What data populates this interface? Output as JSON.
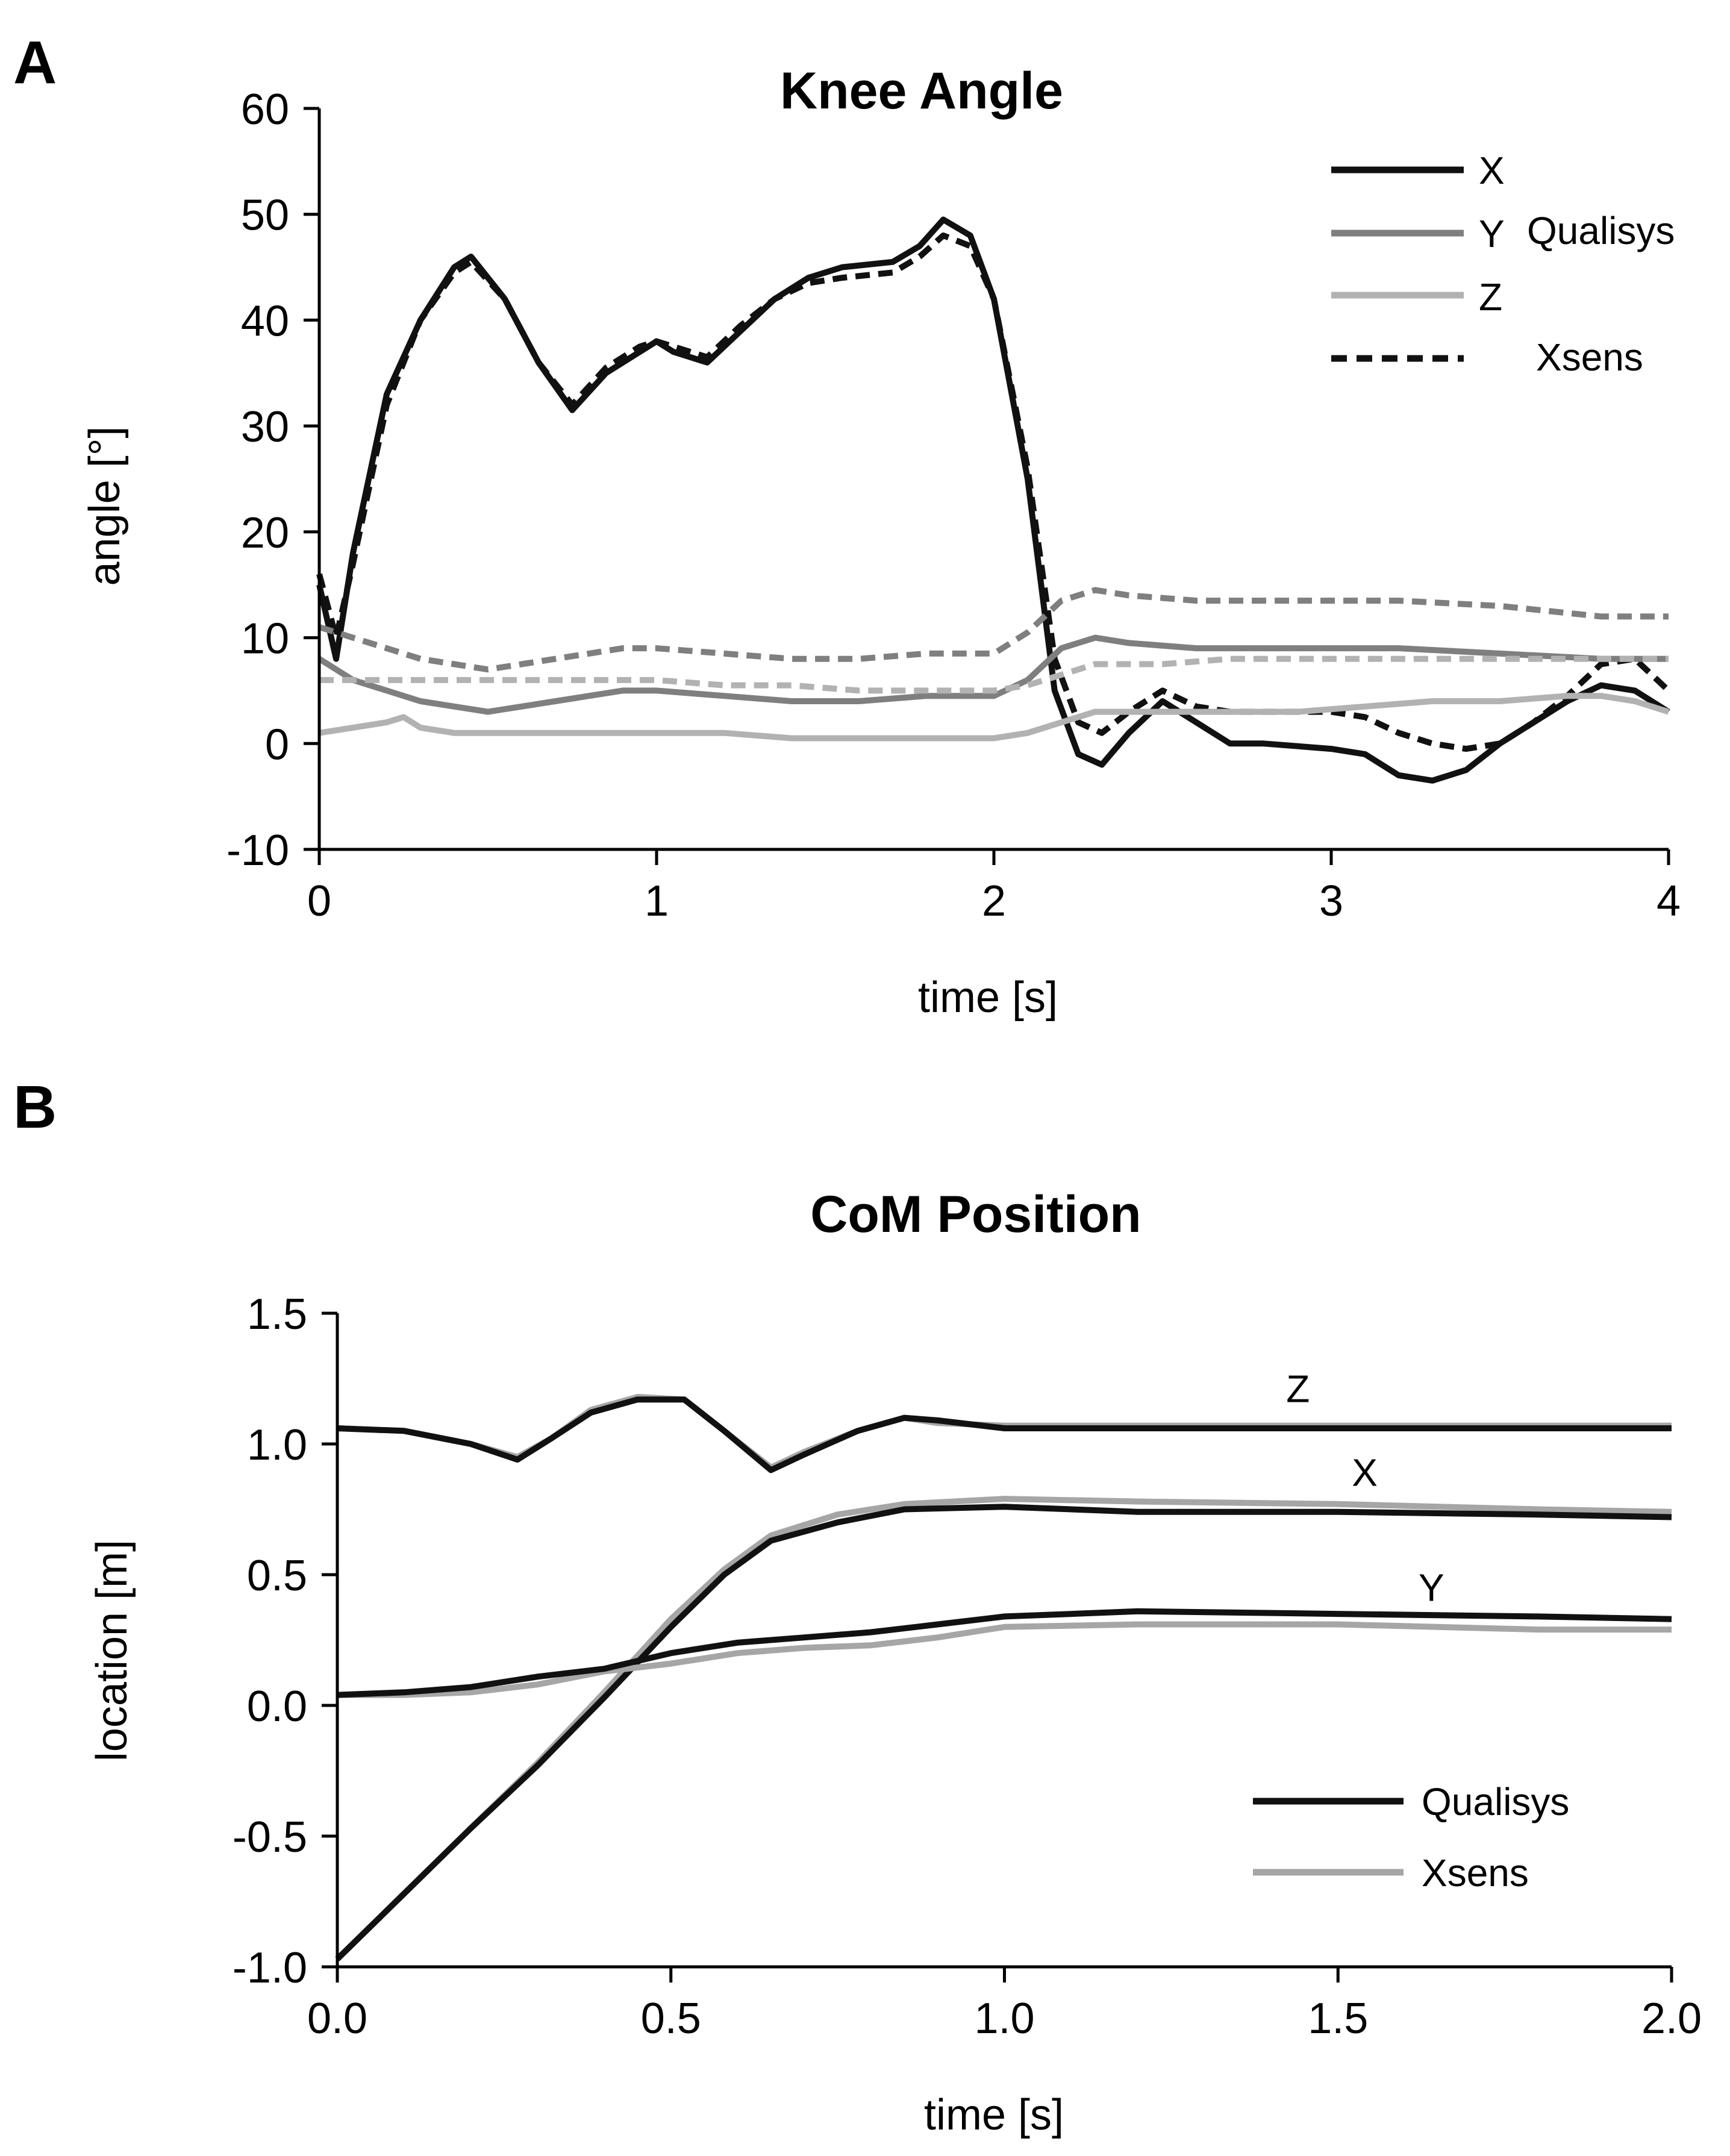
{
  "chart_data": [
    {
      "panel_label": "A",
      "type": "line",
      "title": "Knee Angle",
      "xlabel": "time [s]",
      "ylabel": "angle [°]",
      "xlim": [
        0,
        4
      ],
      "ylim": [
        -10,
        60
      ],
      "xticks": [
        0,
        1,
        2,
        3,
        4
      ],
      "xtick_labels": [
        "0",
        "1",
        "2",
        "3",
        "4"
      ],
      "yticks": [
        -10,
        0,
        10,
        20,
        30,
        40,
        50,
        60
      ],
      "ytick_labels": [
        "-10",
        "0",
        "10",
        "20",
        "30",
        "40",
        "50",
        "60"
      ],
      "grid": false,
      "legend_position": "top-right",
      "legend": {
        "x_label": "X",
        "y_label": "Y",
        "z_label": "Z",
        "group_label": "Qualisys",
        "dashed_label": "Xsens"
      },
      "colors": {
        "X": "#111111",
        "Y": "#7f7f7f",
        "Z": "#b2b2b2"
      },
      "series": [
        {
          "name": "X",
          "system": "Qualisys",
          "color": "#111111",
          "dash": false,
          "x": [
            0,
            0.05,
            0.1,
            0.2,
            0.3,
            0.4,
            0.45,
            0.55,
            0.65,
            0.75,
            0.85,
            0.95,
            1.0,
            1.05,
            1.15,
            1.25,
            1.35,
            1.45,
            1.55,
            1.7,
            1.78,
            1.85,
            1.93,
            2.0,
            2.1,
            2.18,
            2.25,
            2.32,
            2.4,
            2.5,
            2.6,
            2.7,
            2.8,
            3.0,
            3.1,
            3.2,
            3.3,
            3.4,
            3.5,
            3.6,
            3.7,
            3.8,
            3.9,
            4.0
          ],
          "y": [
            15,
            8,
            18,
            33,
            40,
            45,
            46,
            42,
            36,
            31.5,
            35,
            37,
            38,
            37,
            36,
            39,
            42,
            44,
            45,
            45.5,
            47,
            49.5,
            48,
            42,
            25,
            5,
            -1,
            -2,
            1,
            4,
            2,
            0,
            0,
            -0.5,
            -1,
            -3,
            -3.5,
            -2.5,
            0,
            2,
            4,
            5.5,
            5,
            3
          ]
        },
        {
          "name": "X",
          "system": "Xsens",
          "color": "#111111",
          "dash": true,
          "x": [
            0,
            0.05,
            0.1,
            0.2,
            0.3,
            0.4,
            0.45,
            0.55,
            0.65,
            0.75,
            0.85,
            0.95,
            1.0,
            1.05,
            1.15,
            1.25,
            1.35,
            1.45,
            1.55,
            1.7,
            1.78,
            1.85,
            1.93,
            2.0,
            2.1,
            2.18,
            2.25,
            2.32,
            2.4,
            2.5,
            2.6,
            2.7,
            2.8,
            3.0,
            3.1,
            3.2,
            3.3,
            3.4,
            3.5,
            3.6,
            3.7,
            3.8,
            3.9,
            4.0
          ],
          "y": [
            16,
            10,
            17,
            32,
            40,
            44.5,
            45.5,
            42,
            36,
            32,
            35.5,
            37.5,
            38,
            37.5,
            36.5,
            39.5,
            42,
            43.5,
            44,
            44.5,
            46,
            48,
            47,
            42,
            26,
            8,
            2,
            1,
            3,
            5,
            3.5,
            3,
            3,
            3,
            2.5,
            1,
            0,
            -0.5,
            0,
            2,
            4.5,
            7.5,
            8,
            5
          ]
        },
        {
          "name": "Y",
          "system": "Qualisys",
          "color": "#7f7f7f",
          "dash": false,
          "x": [
            0,
            0.1,
            0.2,
            0.3,
            0.4,
            0.5,
            0.6,
            0.7,
            0.8,
            0.9,
            1.0,
            1.2,
            1.4,
            1.6,
            1.8,
            2.0,
            2.1,
            2.2,
            2.3,
            2.4,
            2.6,
            2.8,
            3.0,
            3.2,
            3.5,
            3.8,
            4.0
          ],
          "y": [
            8,
            6,
            5,
            4,
            3.5,
            3,
            3.5,
            4,
            4.5,
            5,
            5,
            4.5,
            4,
            4,
            4.5,
            4.5,
            6,
            9,
            10,
            9.5,
            9,
            9,
            9,
            9,
            8.5,
            8,
            8
          ]
        },
        {
          "name": "Y",
          "system": "Xsens",
          "color": "#7f7f7f",
          "dash": true,
          "x": [
            0,
            0.1,
            0.2,
            0.3,
            0.4,
            0.5,
            0.6,
            0.7,
            0.8,
            0.9,
            1.0,
            1.2,
            1.4,
            1.6,
            1.8,
            2.0,
            2.1,
            2.2,
            2.3,
            2.4,
            2.6,
            2.8,
            3.0,
            3.2,
            3.5,
            3.8,
            4.0
          ],
          "y": [
            11,
            10,
            9,
            8,
            7.5,
            7,
            7.5,
            8,
            8.5,
            9,
            9,
            8.5,
            8,
            8,
            8.5,
            8.5,
            10.5,
            13.5,
            14.5,
            14,
            13.5,
            13.5,
            13.5,
            13.5,
            13,
            12,
            12
          ]
        },
        {
          "name": "Z",
          "system": "Qualisys",
          "color": "#b2b2b2",
          "dash": false,
          "x": [
            0,
            0.1,
            0.2,
            0.25,
            0.3,
            0.4,
            0.6,
            0.8,
            1.0,
            1.2,
            1.4,
            1.6,
            1.8,
            2.0,
            2.1,
            2.2,
            2.3,
            2.5,
            2.7,
            2.9,
            3.1,
            3.3,
            3.5,
            3.7,
            3.8,
            3.9,
            4.0
          ],
          "y": [
            1,
            1.5,
            2,
            2.5,
            1.5,
            1,
            1,
            1,
            1,
            1,
            0.5,
            0.5,
            0.5,
            0.5,
            1,
            2,
            3,
            3,
            3,
            3,
            3.5,
            4,
            4,
            4.5,
            4.5,
            4,
            3
          ]
        },
        {
          "name": "Z",
          "system": "Xsens",
          "color": "#b2b2b2",
          "dash": true,
          "x": [
            0,
            0.1,
            0.2,
            0.3,
            0.4,
            0.6,
            0.8,
            1.0,
            1.2,
            1.4,
            1.6,
            1.8,
            2.0,
            2.1,
            2.2,
            2.3,
            2.5,
            2.7,
            2.9,
            3.1,
            3.3,
            3.5,
            3.7,
            3.9,
            4.0
          ],
          "y": [
            6,
            6,
            6,
            6,
            6,
            6,
            6,
            6,
            5.5,
            5.5,
            5,
            5,
            5,
            5.5,
            6.5,
            7.5,
            7.5,
            8,
            8,
            8,
            8,
            8,
            8,
            8,
            8
          ]
        }
      ]
    },
    {
      "panel_label": "B",
      "type": "line",
      "title": "CoM Position",
      "xlabel": "time [s]",
      "ylabel": "location [m]",
      "xlim": [
        0,
        2
      ],
      "ylim": [
        -1,
        1.5
      ],
      "xticks": [
        0,
        0.5,
        1,
        1.5,
        2
      ],
      "xtick_labels": [
        "0.0",
        "0.5",
        "1.0",
        "1.5",
        "2.0"
      ],
      "yticks": [
        -1,
        -0.5,
        0,
        0.5,
        1,
        1.5
      ],
      "ytick_labels": [
        "-1.0",
        "-0.5",
        "0.0",
        "0.5",
        "1.0",
        "1.5"
      ],
      "grid": false,
      "legend_position": "bottom-right",
      "legend": {
        "qualisys_label": "Qualisys",
        "xsens_label": "Xsens"
      },
      "colors": {
        "Qualisys": "#111111",
        "Xsens": "#a6a6a6"
      },
      "series_labels": [
        {
          "text": "Z",
          "x": 1.44,
          "y": 1.16
        },
        {
          "text": "X",
          "x": 1.54,
          "y": 0.84
        },
        {
          "text": "Y",
          "x": 1.64,
          "y": 0.4
        }
      ],
      "series": [
        {
          "name": "Z",
          "system": "Xsens",
          "color": "#a6a6a6",
          "x": [
            0,
            0.1,
            0.2,
            0.27,
            0.32,
            0.38,
            0.45,
            0.52,
            0.58,
            0.65,
            0.7,
            0.78,
            0.85,
            0.9,
            1.0,
            1.2,
            1.5,
            1.8,
            2.0
          ],
          "y": [
            1.06,
            1.05,
            1.0,
            0.95,
            1.02,
            1.13,
            1.18,
            1.17,
            1.05,
            0.91,
            0.97,
            1.05,
            1.1,
            1.08,
            1.07,
            1.07,
            1.07,
            1.07,
            1.07
          ]
        },
        {
          "name": "Z",
          "system": "Qualisys",
          "color": "#111111",
          "x": [
            0,
            0.1,
            0.2,
            0.27,
            0.32,
            0.38,
            0.45,
            0.52,
            0.58,
            0.65,
            0.7,
            0.78,
            0.85,
            0.9,
            1.0,
            1.2,
            1.5,
            1.8,
            2.0
          ],
          "y": [
            1.06,
            1.05,
            1.0,
            0.94,
            1.02,
            1.12,
            1.17,
            1.17,
            1.05,
            0.9,
            0.96,
            1.05,
            1.1,
            1.09,
            1.06,
            1.06,
            1.06,
            1.06,
            1.06
          ]
        },
        {
          "name": "X",
          "system": "Xsens",
          "color": "#a6a6a6",
          "x": [
            0,
            0.1,
            0.2,
            0.3,
            0.4,
            0.5,
            0.58,
            0.65,
            0.75,
            0.85,
            1.0,
            1.2,
            1.5,
            1.8,
            2.0
          ],
          "y": [
            -0.97,
            -0.72,
            -0.47,
            -0.22,
            0.05,
            0.33,
            0.52,
            0.65,
            0.73,
            0.77,
            0.79,
            0.78,
            0.77,
            0.75,
            0.74
          ]
        },
        {
          "name": "X",
          "system": "Qualisys",
          "color": "#111111",
          "x": [
            0,
            0.1,
            0.2,
            0.3,
            0.4,
            0.5,
            0.58,
            0.65,
            0.75,
            0.85,
            1.0,
            1.2,
            1.5,
            1.8,
            2.0
          ],
          "y": [
            -0.97,
            -0.72,
            -0.47,
            -0.23,
            0.03,
            0.3,
            0.5,
            0.63,
            0.7,
            0.75,
            0.76,
            0.74,
            0.74,
            0.73,
            0.72
          ]
        },
        {
          "name": "Y",
          "system": "Xsens",
          "color": "#a6a6a6",
          "x": [
            0,
            0.1,
            0.2,
            0.3,
            0.4,
            0.5,
            0.6,
            0.7,
            0.8,
            0.9,
            1.0,
            1.2,
            1.5,
            1.8,
            2.0
          ],
          "y": [
            0.04,
            0.04,
            0.05,
            0.08,
            0.13,
            0.16,
            0.2,
            0.22,
            0.23,
            0.26,
            0.3,
            0.31,
            0.31,
            0.29,
            0.29
          ]
        },
        {
          "name": "Y",
          "system": "Qualisys",
          "color": "#111111",
          "x": [
            0,
            0.1,
            0.2,
            0.3,
            0.4,
            0.5,
            0.6,
            0.7,
            0.8,
            0.9,
            1.0,
            1.2,
            1.5,
            1.8,
            2.0
          ],
          "y": [
            0.04,
            0.05,
            0.07,
            0.11,
            0.14,
            0.2,
            0.24,
            0.26,
            0.28,
            0.31,
            0.34,
            0.36,
            0.35,
            0.34,
            0.33
          ]
        }
      ]
    }
  ]
}
